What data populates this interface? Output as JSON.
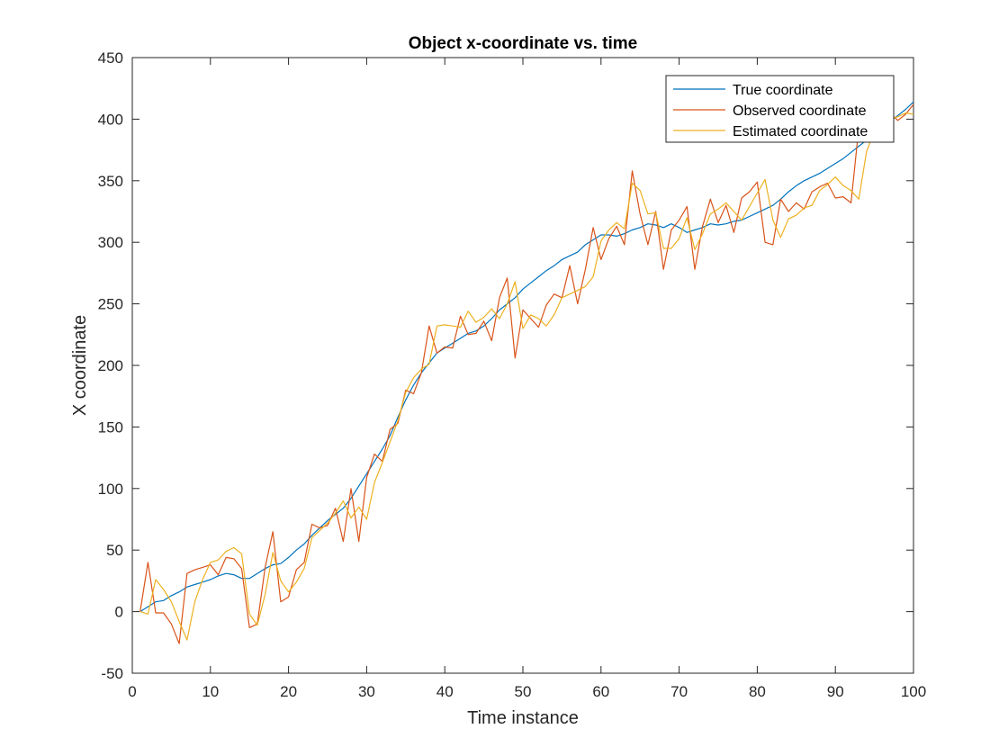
{
  "chart_data": {
    "type": "line",
    "title": "Object x-coordinate vs. time",
    "xlabel": "Time instance",
    "ylabel": "X coordinate",
    "xlim": [
      0,
      100
    ],
    "ylim": [
      -50,
      450
    ],
    "xticks": [
      "0",
      "10",
      "20",
      "30",
      "40",
      "50",
      "60",
      "70",
      "80",
      "90",
      "100"
    ],
    "yticks": [
      "-50",
      "0",
      "50",
      "100",
      "150",
      "200",
      "250",
      "300",
      "350",
      "400",
      "450"
    ],
    "grid": false,
    "legend_position": "top-right",
    "x": [
      1,
      2,
      3,
      4,
      5,
      6,
      7,
      8,
      9,
      10,
      11,
      12,
      13,
      14,
      15,
      16,
      17,
      18,
      19,
      20,
      21,
      22,
      23,
      24,
      25,
      26,
      27,
      28,
      29,
      30,
      31,
      32,
      33,
      34,
      35,
      36,
      37,
      38,
      39,
      40,
      41,
      42,
      43,
      44,
      45,
      46,
      47,
      48,
      49,
      50,
      51,
      52,
      53,
      54,
      55,
      56,
      57,
      58,
      59,
      60,
      61,
      62,
      63,
      64,
      65,
      66,
      67,
      68,
      69,
      70,
      71,
      72,
      73,
      74,
      75,
      76,
      77,
      78,
      79,
      80,
      81,
      82,
      83,
      84,
      85,
      86,
      87,
      88,
      89,
      90,
      91,
      92,
      93,
      94,
      95,
      96,
      97,
      98,
      99,
      100
    ],
    "series": [
      {
        "name": "True coordinate",
        "color": "#0072BD",
        "values": [
          0,
          4,
          8,
          9,
          13,
          16,
          20,
          22,
          24,
          26,
          29,
          31,
          30,
          27,
          27,
          31,
          35,
          38,
          39,
          44,
          50,
          55,
          62,
          68,
          74,
          79,
          84,
          92,
          102,
          112,
          122,
          132,
          143,
          158,
          172,
          184,
          194,
          202,
          210,
          214,
          218,
          222,
          226,
          228,
          232,
          238,
          245,
          250,
          255,
          262,
          267,
          272,
          277,
          281,
          286,
          289,
          292,
          298,
          302,
          306,
          306,
          305,
          307,
          310,
          312,
          315,
          314,
          312,
          315,
          312,
          308,
          310,
          312,
          315,
          314,
          315,
          317,
          318,
          321,
          324,
          327,
          330,
          335,
          341,
          346,
          350,
          353,
          356,
          360,
          364,
          368,
          373,
          378,
          383,
          388,
          393,
          398,
          403,
          408,
          414
        ]
      },
      {
        "name": "Observed coordinate",
        "color": "#D95319",
        "values": [
          0,
          40,
          -1,
          -1,
          -10,
          -26,
          31,
          34,
          36,
          38,
          30,
          44,
          43,
          35,
          -13,
          -10,
          36,
          65,
          8,
          12,
          34,
          40,
          71,
          68,
          70,
          84,
          57,
          100,
          57,
          109,
          128,
          122,
          148,
          153,
          180,
          177,
          194,
          232,
          210,
          215,
          214,
          240,
          225,
          226,
          236,
          220,
          255,
          271,
          206,
          245,
          238,
          231,
          249,
          258,
          255,
          281,
          250,
          278,
          312,
          286,
          303,
          313,
          298,
          358,
          323,
          298,
          325,
          278,
          310,
          318,
          329,
          278,
          313,
          335,
          316,
          330,
          308,
          336,
          341,
          349,
          300,
          298,
          335,
          325,
          332,
          327,
          341,
          345,
          348,
          336,
          337,
          332,
          393,
          398,
          401,
          403,
          405,
          399,
          404,
          412
        ]
      },
      {
        "name": "Estimated coordinate",
        "color": "#EDB120",
        "values": [
          0,
          -2,
          26,
          18,
          8,
          -8,
          -23,
          8,
          26,
          40,
          42,
          49,
          52,
          47,
          -2,
          -11,
          14,
          48,
          25,
          16,
          24,
          35,
          60,
          66,
          72,
          80,
          90,
          76,
          85,
          75,
          105,
          121,
          138,
          155,
          178,
          190,
          197,
          201,
          232,
          233,
          232,
          231,
          244,
          235,
          239,
          246,
          238,
          250,
          268,
          230,
          241,
          238,
          232,
          241,
          255,
          258,
          261,
          264,
          272,
          301,
          310,
          316,
          311,
          348,
          342,
          323,
          324,
          295,
          295,
          303,
          320,
          294,
          307,
          323,
          327,
          332,
          325,
          318,
          329,
          340,
          351,
          318,
          304,
          319,
          322,
          328,
          330,
          342,
          347,
          353,
          346,
          342,
          335,
          374,
          390,
          397,
          400,
          402,
          405,
          404
        ]
      }
    ]
  }
}
